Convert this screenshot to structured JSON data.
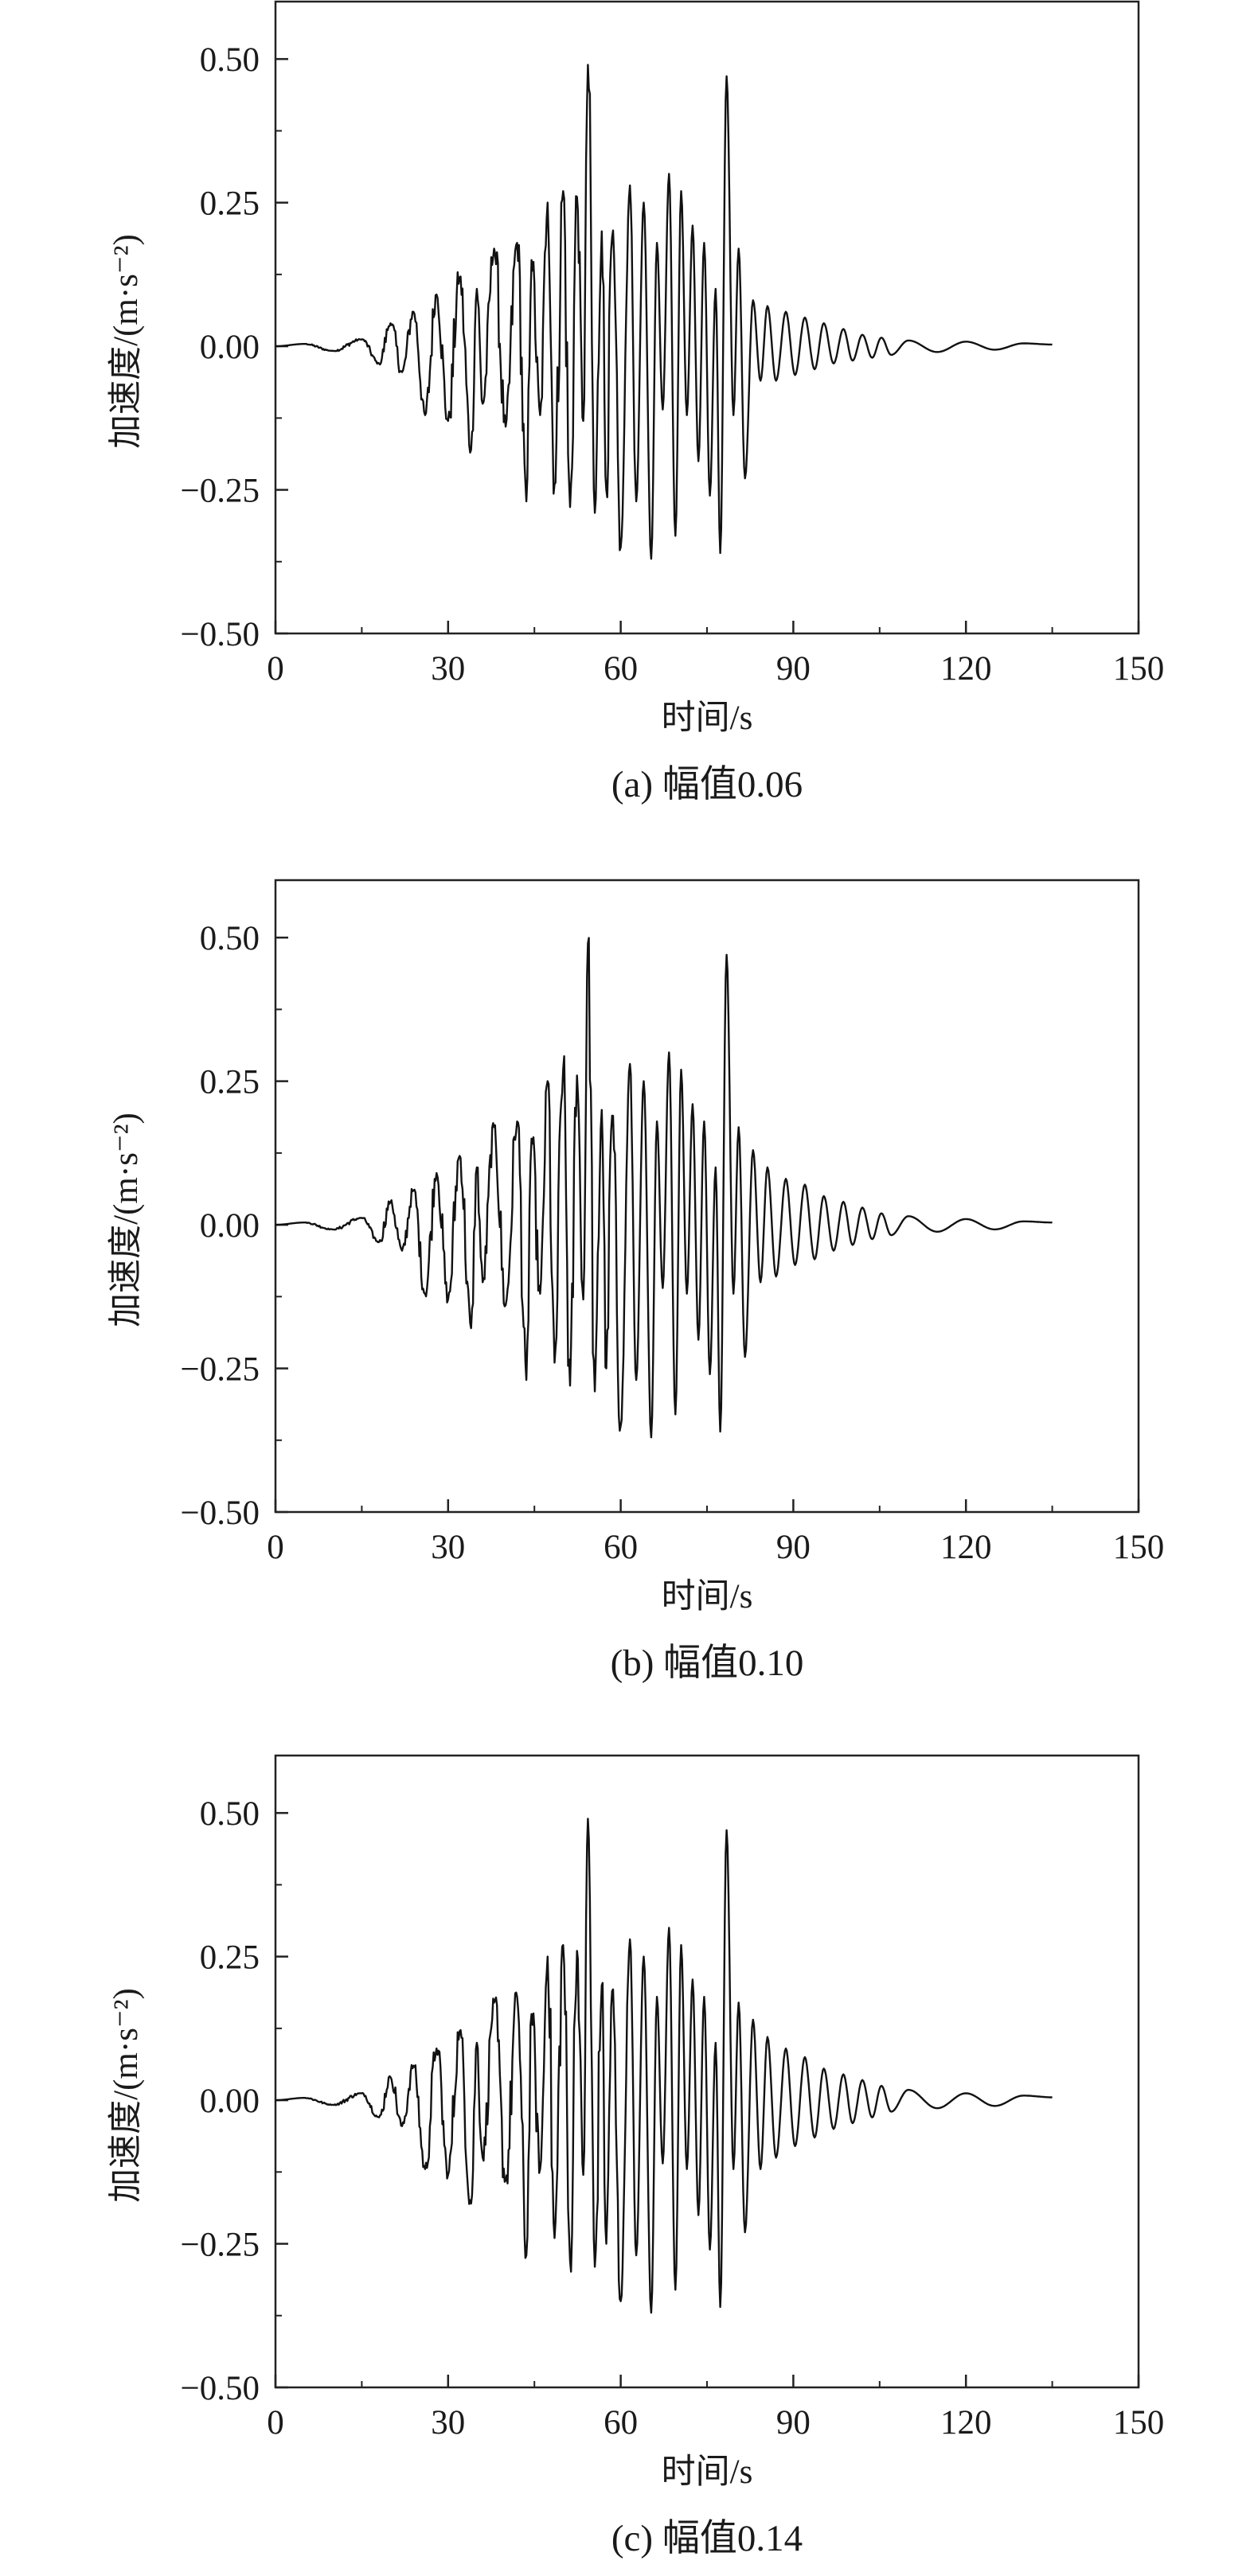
{
  "chart_data": [
    {
      "type": "line",
      "caption": "(a) 幅值0.06",
      "xlabel": "时间/s",
      "ylabel": "加速度/(m·s⁻²)",
      "xlim": [
        0,
        150
      ],
      "ylim": [
        -0.5,
        0.6
      ],
      "xticks": [
        0,
        30,
        60,
        90,
        120,
        150
      ],
      "xtick_labels": [
        "0",
        "30",
        "60",
        "90",
        "120",
        "150"
      ],
      "yticks": [
        -0.5,
        -0.25,
        0,
        0.25,
        0.5
      ],
      "ytick_labels": [
        "−0.50",
        "−0.25",
        "0.00",
        "0.25",
        "0.50"
      ],
      "series": [
        {
          "x": [
            0,
            5,
            10,
            15,
            18,
            20,
            22,
            24,
            26,
            28,
            30,
            32,
            34,
            35,
            36,
            38,
            40,
            42,
            43.6,
            44.5,
            46,
            47.3,
            48.5,
            50,
            51.2,
            52.4,
            53.5,
            54.3,
            55.5,
            56.7,
            57.5,
            58.5,
            60,
            61.6,
            62.7,
            64,
            65.3,
            66.3,
            67.3,
            68.4,
            69.5,
            70.5,
            71.5,
            72.5,
            73.5,
            74.5,
            75.5,
            76.5,
            77.3,
            78.4,
            79.6,
            80.5,
            81.6,
            83,
            84.3,
            85.5,
            87,
            88.7,
            90.3,
            92,
            93.7,
            95.3,
            97,
            98.7,
            100.3,
            102,
            103.7,
            105.3,
            107,
            110,
            115,
            120,
            125,
            130,
            135
          ],
          "y": [
            0,
            0.004,
            -0.008,
            0.012,
            -0.03,
            0.04,
            -0.045,
            0.06,
            -0.12,
            0.09,
            -0.13,
            0.12,
            -0.18,
            0.1,
            -0.1,
            0.17,
            -0.14,
            0.18,
            -0.27,
            0.15,
            -0.12,
            0.25,
            -0.24,
            0.27,
            -0.28,
            0.26,
            -0.13,
            0.49,
            -0.29,
            0.2,
            -0.25,
            0.19,
            -0.35,
            0.28,
            -0.27,
            0.25,
            -0.37,
            0.18,
            -0.11,
            0.3,
            -0.33,
            0.27,
            -0.12,
            0.21,
            -0.2,
            0.18,
            -0.26,
            0.1,
            -0.36,
            0.47,
            -0.12,
            0.17,
            -0.23,
            0.08,
            -0.06,
            0.07,
            -0.06,
            0.06,
            -0.05,
            0.05,
            -0.04,
            0.04,
            -0.03,
            0.03,
            -0.025,
            0.02,
            -0.02,
            0.015,
            -0.015,
            0.01,
            -0.01,
            0.008,
            -0.006,
            0.005,
            0.003
          ]
        }
      ]
    },
    {
      "type": "line",
      "caption": "(b) 幅值0.10",
      "xlabel": "时间/s",
      "ylabel": "加速度/(m·s⁻²)",
      "xlim": [
        0,
        150
      ],
      "ylim": [
        -0.5,
        0.6
      ],
      "xticks": [
        0,
        30,
        60,
        90,
        120,
        150
      ],
      "xtick_labels": [
        "0",
        "30",
        "60",
        "90",
        "120",
        "150"
      ],
      "yticks": [
        -0.5,
        -0.25,
        0,
        0.25,
        0.5
      ],
      "ytick_labels": [
        "−0.50",
        "−0.25",
        "0.00",
        "0.25",
        "0.50"
      ],
      "series": [
        {
          "x": [
            0,
            5,
            10,
            15,
            18,
            20,
            22,
            24,
            26,
            28,
            30,
            32,
            34,
            35,
            36,
            38,
            40,
            42,
            43.6,
            44.5,
            46,
            47.3,
            48.5,
            50,
            51.2,
            52.4,
            53.5,
            54.3,
            55.5,
            56.7,
            57.5,
            58.5,
            60,
            61.6,
            62.7,
            64,
            65.3,
            66.3,
            67.3,
            68.4,
            69.5,
            70.5,
            71.5,
            72.5,
            73.5,
            74.5,
            75.5,
            76.5,
            77.3,
            78.4,
            79.6,
            80.5,
            81.6,
            83,
            84.3,
            85.5,
            87,
            88.7,
            90.3,
            92,
            93.7,
            95.3,
            97,
            98.7,
            100.3,
            102,
            103.7,
            105.3,
            107,
            110,
            115,
            120,
            125,
            130,
            135
          ],
          "y": [
            0,
            0.004,
            -0.008,
            0.012,
            -0.03,
            0.04,
            -0.045,
            0.06,
            -0.12,
            0.09,
            -0.13,
            0.12,
            -0.18,
            0.1,
            -0.1,
            0.17,
            -0.14,
            0.18,
            -0.27,
            0.15,
            -0.12,
            0.25,
            -0.24,
            0.27,
            -0.28,
            0.26,
            -0.13,
            0.49,
            -0.29,
            0.2,
            -0.25,
            0.19,
            -0.35,
            0.28,
            -0.27,
            0.25,
            -0.37,
            0.18,
            -0.11,
            0.3,
            -0.33,
            0.27,
            -0.12,
            0.21,
            -0.2,
            0.18,
            -0.26,
            0.1,
            -0.36,
            0.47,
            -0.12,
            0.17,
            -0.23,
            0.13,
            -0.1,
            0.1,
            -0.09,
            0.08,
            -0.07,
            0.07,
            -0.06,
            0.05,
            -0.045,
            0.04,
            -0.035,
            0.03,
            -0.025,
            0.02,
            -0.018,
            0.015,
            -0.012,
            0.01,
            -0.008,
            0.006,
            0.004
          ]
        }
      ]
    },
    {
      "type": "line",
      "caption": "(c) 幅值0.14",
      "xlabel": "时间/s",
      "ylabel": "加速度/(m·s⁻²)",
      "xlim": [
        0,
        150
      ],
      "ylim": [
        -0.5,
        0.6
      ],
      "xticks": [
        0,
        30,
        60,
        90,
        120,
        150
      ],
      "xtick_labels": [
        "0",
        "30",
        "60",
        "90",
        "120",
        "150"
      ],
      "yticks": [
        -0.5,
        -0.25,
        0,
        0.25,
        0.5
      ],
      "ytick_labels": [
        "−0.50",
        "−0.25",
        "0.00",
        "0.25",
        "0.50"
      ],
      "series": [
        {
          "x": [
            0,
            5,
            10,
            15,
            18,
            20,
            22,
            24,
            26,
            28,
            30,
            32,
            34,
            35,
            36,
            38,
            40,
            42,
            43.6,
            44.5,
            46,
            47.3,
            48.5,
            50,
            51.2,
            52.4,
            53.5,
            54.3,
            55.5,
            56.7,
            57.5,
            58.5,
            60,
            61.6,
            62.7,
            64,
            65.3,
            66.3,
            67.3,
            68.4,
            69.5,
            70.5,
            71.5,
            72.5,
            73.5,
            74.5,
            75.5,
            76.5,
            77.3,
            78.4,
            79.6,
            80.5,
            81.6,
            83,
            84.3,
            85.5,
            87,
            88.7,
            90.3,
            92,
            93.7,
            95.3,
            97,
            98.7,
            100.3,
            102,
            103.7,
            105.3,
            107,
            110,
            115,
            120,
            125,
            130,
            135
          ],
          "y": [
            0,
            0.004,
            -0.008,
            0.012,
            -0.03,
            0.04,
            -0.045,
            0.06,
            -0.12,
            0.09,
            -0.13,
            0.12,
            -0.18,
            0.1,
            -0.1,
            0.17,
            -0.14,
            0.18,
            -0.27,
            0.15,
            -0.12,
            0.25,
            -0.24,
            0.27,
            -0.28,
            0.26,
            -0.13,
            0.49,
            -0.29,
            0.2,
            -0.25,
            0.19,
            -0.35,
            0.28,
            -0.27,
            0.25,
            -0.37,
            0.18,
            -0.11,
            0.3,
            -0.33,
            0.27,
            -0.12,
            0.21,
            -0.2,
            0.18,
            -0.26,
            0.1,
            -0.36,
            0.47,
            -0.12,
            0.17,
            -0.23,
            0.14,
            -0.12,
            0.11,
            -0.1,
            0.09,
            -0.08,
            0.075,
            -0.065,
            0.055,
            -0.05,
            0.045,
            -0.04,
            0.035,
            -0.03,
            0.025,
            -0.02,
            0.018,
            -0.014,
            0.012,
            -0.01,
            0.008,
            0.005
          ]
        }
      ]
    }
  ]
}
